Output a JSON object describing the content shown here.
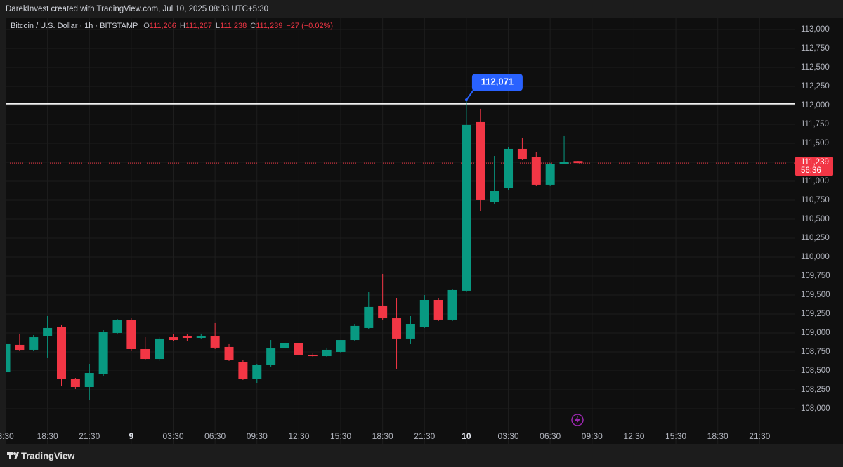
{
  "header": {
    "credit": "DarekInvest created with TradingView.com, Jul 10, 2025 08:33 UTC+5:30"
  },
  "footer": {
    "brand": "TradingView"
  },
  "chart_data": {
    "type": "candlestick",
    "symbol": "Bitcoin / U.S. Dollar · 1h · BITSTAMP",
    "ohlc_legend": [
      {
        "key": "O",
        "value": "111,266"
      },
      {
        "key": "H",
        "value": "111,267"
      },
      {
        "key": "L",
        "value": "111,238"
      },
      {
        "key": "C",
        "value": "111,239"
      }
    ],
    "change": "−27 (−0.02%)",
    "up_color": "#089981",
    "down_color": "#f23645",
    "x": [
      -33,
      -32,
      -31,
      -30,
      -29,
      -28,
      -27,
      -26,
      -25,
      -24,
      -23,
      -22,
      -21,
      -20,
      -19,
      -18,
      -17,
      -16,
      -15,
      -14,
      -13,
      -12,
      -11,
      -10,
      -9,
      -8,
      -7,
      -6,
      -5,
      -4,
      -3,
      -2,
      -1,
      0,
      1,
      2,
      3,
      4,
      5,
      6,
      7,
      8
    ],
    "open": [
      108481,
      108843,
      108778,
      108954,
      109074,
      108389,
      108287,
      108454,
      109000,
      109167,
      108787,
      108657,
      108944,
      108954,
      108935,
      108954,
      108815,
      108620,
      108389,
      108574,
      108796,
      108861,
      108713,
      108694,
      108750,
      108907,
      109065,
      109352,
      109194,
      108917,
      109083,
      109435,
      109176,
      109556,
      111778,
      110731,
      110907,
      111426,
      111315,
      110954,
      111231,
      111266
    ],
    "high": [
      108917,
      108991,
      108972,
      109222,
      109102,
      108407,
      108593,
      109037,
      109185,
      109194,
      108944,
      108944,
      108981,
      108981,
      108991,
      109130,
      108852,
      108639,
      108593,
      108907,
      108880,
      108870,
      108731,
      108806,
      108907,
      109111,
      109537,
      109778,
      109454,
      109222,
      109500,
      109454,
      109583,
      112071,
      111954,
      111333,
      111444,
      111574,
      111380,
      111241,
      111602,
      111267
    ],
    "low": [
      108435,
      108759,
      108759,
      108667,
      108296,
      108259,
      108120,
      108435,
      108981,
      108759,
      108648,
      108630,
      108889,
      108889,
      108917,
      108787,
      108630,
      108380,
      108333,
      108556,
      108787,
      108704,
      108685,
      108676,
      108741,
      108898,
      109046,
      109176,
      108528,
      108852,
      109065,
      109157,
      109157,
      109537,
      110611,
      110704,
      110889,
      111278,
      110935,
      110935,
      111222,
      111238
    ],
    "close": [
      108852,
      108768,
      108944,
      109065,
      108389,
      108287,
      108472,
      109009,
      109167,
      108787,
      108657,
      108917,
      108907,
      108935,
      108954,
      108806,
      108648,
      108389,
      108574,
      108796,
      108861,
      108713,
      108694,
      108778,
      108907,
      109093,
      109343,
      109194,
      108917,
      109111,
      109435,
      109176,
      109565,
      111741,
      110750,
      110870,
      111426,
      111287,
      110954,
      111222,
      111250,
      111239
    ],
    "xlim": [
      -33,
      23.55
    ],
    "xticks": [
      {
        "value": -33,
        "label": "3:30"
      },
      {
        "value": -30,
        "label": "18:30"
      },
      {
        "value": -27,
        "label": "21:30"
      },
      {
        "value": -24,
        "label": "9"
      },
      {
        "value": -21,
        "label": "03:30"
      },
      {
        "value": -18,
        "label": "06:30"
      },
      {
        "value": -15,
        "label": "09:30"
      },
      {
        "value": -12,
        "label": "12:30"
      },
      {
        "value": -9,
        "label": "15:30"
      },
      {
        "value": -6,
        "label": "18:30"
      },
      {
        "value": -3,
        "label": "21:30"
      },
      {
        "value": 0,
        "label": "10"
      },
      {
        "value": 3,
        "label": "03:30"
      },
      {
        "value": 6,
        "label": "06:30"
      },
      {
        "value": 9,
        "label": "09:30"
      },
      {
        "value": 12,
        "label": "12:30"
      },
      {
        "value": 15,
        "label": "15:30"
      },
      {
        "value": 18,
        "label": "18:30"
      },
      {
        "value": 21,
        "label": "21:30"
      }
    ],
    "ylim": [
      107537,
      113157
    ],
    "yticks": [
      {
        "value": 108000,
        "label": "108,000"
      },
      {
        "value": 108250,
        "label": "108,250"
      },
      {
        "value": 108500,
        "label": "108,500"
      },
      {
        "value": 108750,
        "label": "108,750"
      },
      {
        "value": 109000,
        "label": "109,000"
      },
      {
        "value": 109250,
        "label": "109,250"
      },
      {
        "value": 109500,
        "label": "109,500"
      },
      {
        "value": 109750,
        "label": "109,750"
      },
      {
        "value": 110000,
        "label": "110,000"
      },
      {
        "value": 110250,
        "label": "110,250"
      },
      {
        "value": 110500,
        "label": "110,500"
      },
      {
        "value": 110750,
        "label": "110,750"
      },
      {
        "value": 111000,
        "label": "111,000"
      },
      {
        "value": 111250,
        "label": "111,250"
      },
      {
        "value": 111500,
        "label": "111,500"
      },
      {
        "value": 111750,
        "label": "111,750"
      },
      {
        "value": 112000,
        "label": "112,000"
      },
      {
        "value": 112250,
        "label": "112,250"
      },
      {
        "value": 112500,
        "label": "112,500"
      },
      {
        "value": 112750,
        "label": "112,750"
      },
      {
        "value": 113000,
        "label": "113,000"
      }
    ],
    "grid": true,
    "horizontal_line": 112020,
    "annotation": {
      "value": 112071,
      "label": "112,071",
      "x": 0
    },
    "last_price": {
      "value": 111239,
      "label": "111,239"
    },
    "countdown": "56:36"
  }
}
